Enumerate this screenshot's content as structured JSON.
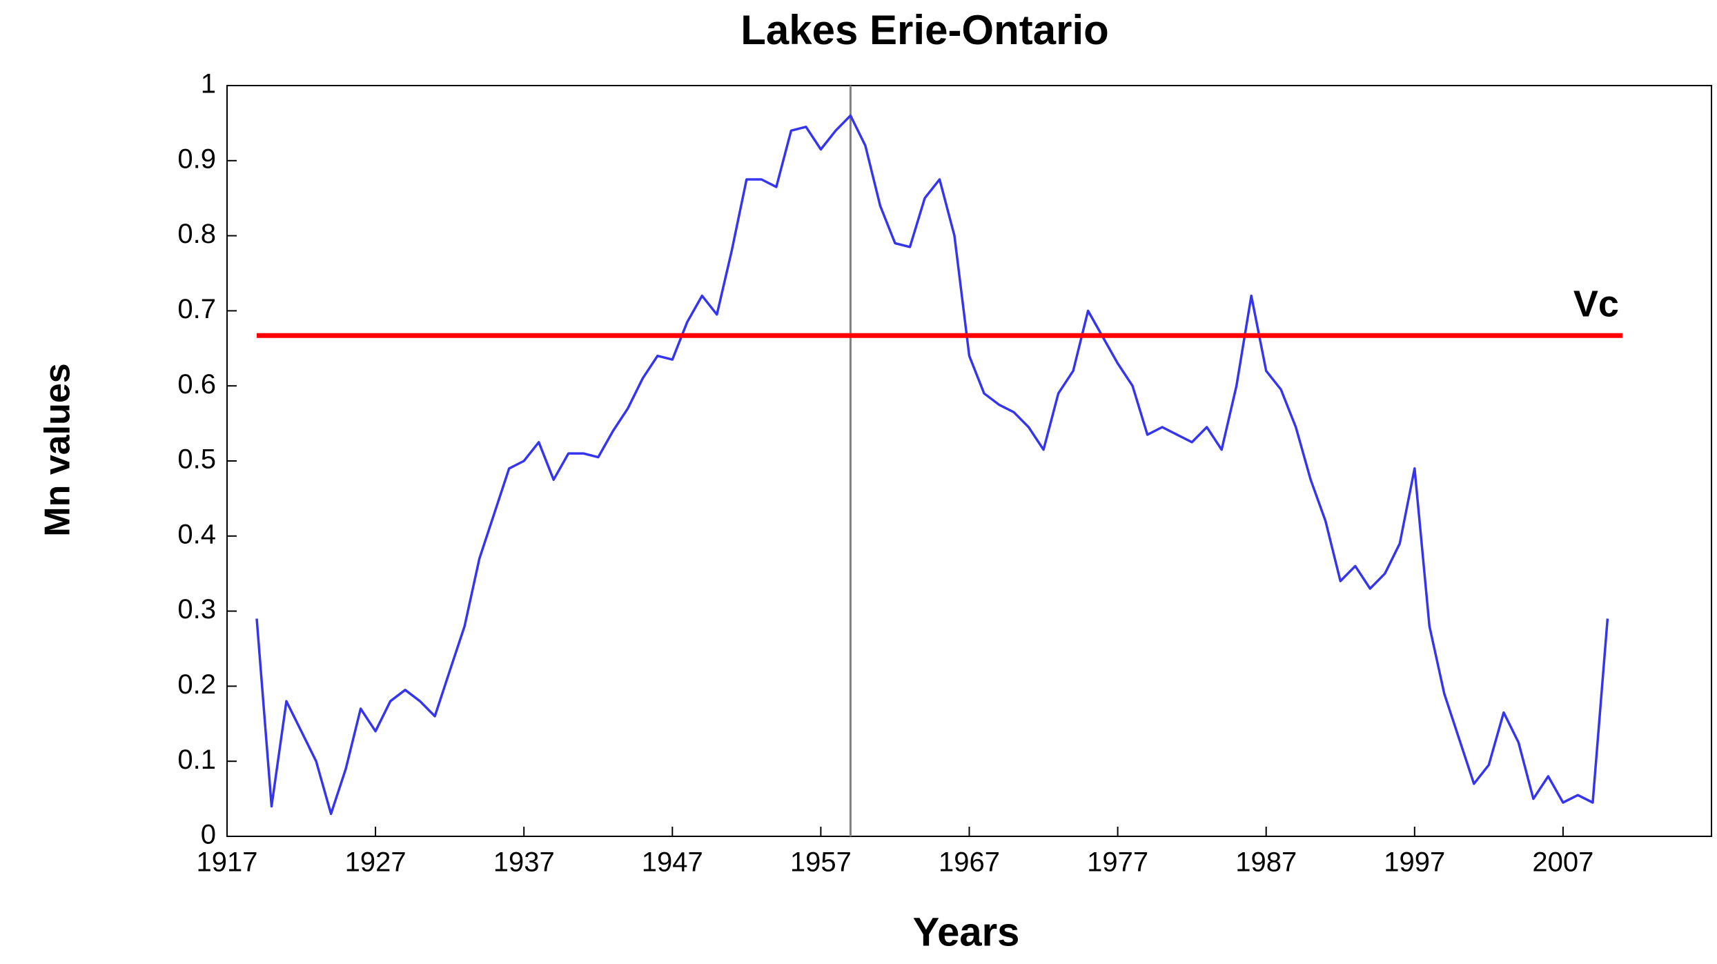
{
  "chart_data": {
    "type": "line",
    "title": "Lakes Erie-Ontario",
    "x_label": "Years",
    "y_label": "Mn values",
    "x": [
      1919,
      1920,
      1921,
      1922,
      1923,
      1924,
      1925,
      1926,
      1927,
      1928,
      1929,
      1930,
      1931,
      1932,
      1933,
      1934,
      1935,
      1936,
      1937,
      1938,
      1939,
      1940,
      1941,
      1942,
      1943,
      1944,
      1945,
      1946,
      1947,
      1948,
      1949,
      1950,
      1951,
      1952,
      1953,
      1954,
      1955,
      1956,
      1957,
      1958,
      1959,
      1960,
      1961,
      1962,
      1963,
      1964,
      1965,
      1966,
      1967,
      1968,
      1969,
      1970,
      1971,
      1972,
      1973,
      1974,
      1975,
      1976,
      1977,
      1978,
      1979,
      1980,
      1981,
      1982,
      1983,
      1984,
      1985,
      1986,
      1987,
      1988,
      1989,
      1990,
      1991,
      1992,
      1993,
      1994,
      1995,
      1996,
      1997,
      1998,
      1999,
      2000,
      2001,
      2002,
      2003,
      2004,
      2005,
      2006,
      2007,
      2008,
      2009,
      2010
    ],
    "series": [
      {
        "color": "#3535f0",
        "values": [
          0.29,
          0.04,
          0.18,
          0.14,
          0.1,
          0.03,
          0.09,
          0.17,
          0.14,
          0.18,
          0.195,
          0.18,
          0.16,
          0.22,
          0.28,
          0.37,
          0.43,
          0.49,
          0.5,
          0.525,
          0.475,
          0.51,
          0.51,
          0.505,
          0.54,
          0.57,
          0.61,
          0.64,
          0.635,
          0.685,
          0.72,
          0.695,
          0.78,
          0.875,
          0.875,
          0.865,
          0.94,
          0.945,
          0.915,
          0.94,
          0.96,
          0.92,
          0.84,
          0.79,
          0.785,
          0.85,
          0.875,
          0.8,
          0.64,
          0.59,
          0.575,
          0.565,
          0.545,
          0.515,
          0.59,
          0.62,
          0.7,
          0.665,
          0.63,
          0.6,
          0.535,
          0.545,
          0.535,
          0.525,
          0.545,
          0.515,
          0.6,
          0.72,
          0.62,
          0.595,
          0.545,
          0.475,
          0.42,
          0.34,
          0.36,
          0.33,
          0.35,
          0.39,
          0.49,
          0.28,
          0.19,
          0.13,
          0.07,
          0.095,
          0.165,
          0.125,
          0.05,
          0.08,
          0.045,
          0.055,
          0.045,
          0.29
        ]
      }
    ],
    "hline": {
      "value": 0.667,
      "label": "Vc",
      "color": "#ff0000"
    },
    "vline": {
      "value": 1959,
      "color": "#808080"
    },
    "xlim": [
      1917,
      2017
    ],
    "xticks": [
      1917,
      1927,
      1937,
      1947,
      1957,
      1967,
      1977,
      1987,
      1997,
      2007
    ],
    "ylim": [
      0,
      1
    ],
    "yticks": [
      0,
      0.1,
      0.2,
      0.3,
      0.4,
      0.5,
      0.6,
      0.7,
      0.8,
      0.9,
      1
    ]
  }
}
